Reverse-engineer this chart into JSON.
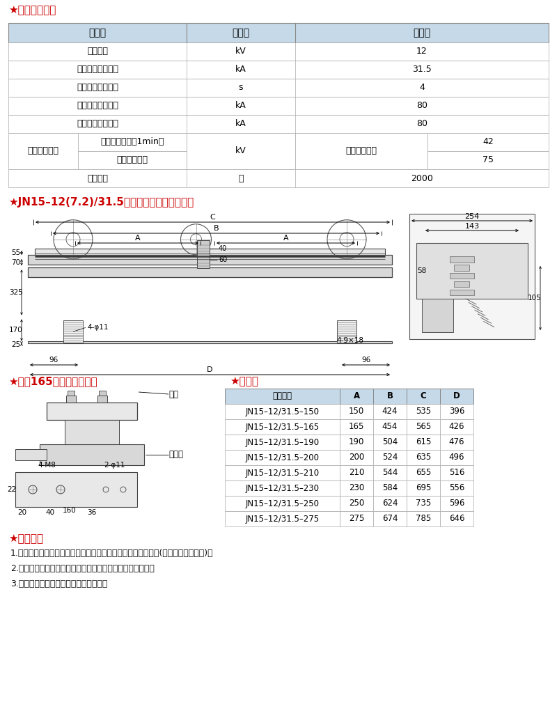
{
  "title_main": "★主要技术参数",
  "title_color": "#cc0000",
  "bg_color": "#ffffff",
  "header_bg": "#c5d9e8",
  "table1_header": [
    "项　目",
    "单　位",
    "数　据"
  ],
  "table1_normal_rows": [
    [
      "额定电压",
      "kV",
      "12"
    ],
    [
      "额定短时耔受电流",
      "kA",
      "31.5"
    ],
    [
      "额定短路持续时间",
      "s",
      "4"
    ],
    [
      "额定短路关合电流",
      "kA",
      "80"
    ],
    [
      "额定峰値耔受电流",
      "kA",
      "80"
    ]
  ],
  "ins_label": "额定绝缘水平",
  "ins_sub": [
    "工频耔受电压（1min）",
    "雷电冲击电压"
  ],
  "ins_unit": "kV",
  "ins_loc": "极对地及相间",
  "ins_vals": [
    "42",
    "75"
  ],
  "mech_label": "机械寿命",
  "mech_unit": "次",
  "mech_val": "2000",
  "title2": "★JN15–12(7.2)/31.5接地开关外形及安装尺寸",
  "title3": "★相距165以下静触头尺寸",
  "title4": "★配套表",
  "table2_header": [
    "产品型号",
    "A",
    "B",
    "C",
    "D"
  ],
  "table2_rows": [
    [
      "JN15–12/31.5–150",
      "150",
      "424",
      "535",
      "396"
    ],
    [
      "JN15–12/31.5–165",
      "165",
      "454",
      "565",
      "426"
    ],
    [
      "JN15–12/31.5–190",
      "190",
      "504",
      "615",
      "476"
    ],
    [
      "JN15–12/31.5–200",
      "200",
      "524",
      "635",
      "496"
    ],
    [
      "JN15–12/31.5–210",
      "210",
      "544",
      "655",
      "516"
    ],
    [
      "JN15–12/31.5–230",
      "230",
      "584",
      "695",
      "556"
    ],
    [
      "JN15–12/31.5–250",
      "250",
      "624",
      "735",
      "596"
    ],
    [
      "JN15–12/31.5–275",
      "275",
      "674",
      "785",
      "646"
    ]
  ],
  "label_muline": "母线",
  "label_jingchu": "静触头",
  "title5": "★订货须知",
  "order_lines": [
    "1.订购接地开关时，须注明产品型号、相距及是否配带电显示器(并注明显示器型号)。",
    "2.用户请注明接地开关在柜内安装时动、静触头的上下位置。",
    "3.用户如有特殊要求，请与我公司联系。"
  ]
}
